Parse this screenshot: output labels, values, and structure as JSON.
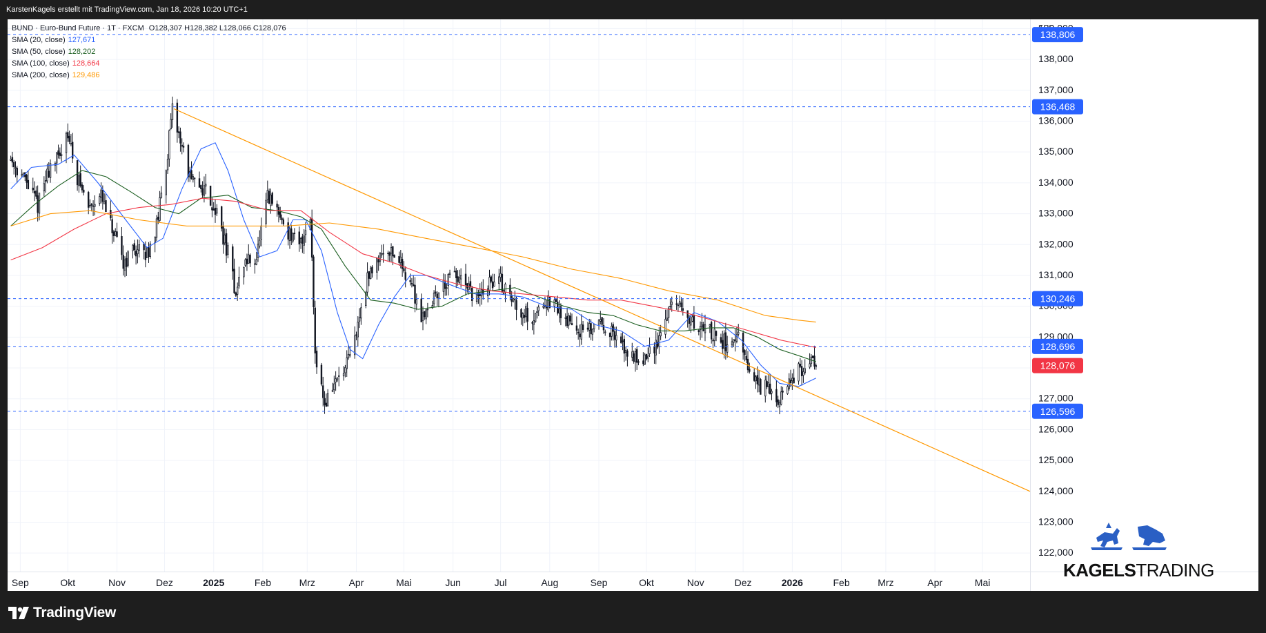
{
  "header": {
    "attribution": "KarstenKagels erstellt mit TradingView.com, Jan 18, 2026 10:20 UTC+1"
  },
  "legend": {
    "title_line": "BUND · Euro-Bund Future · 1T · FXCM",
    "ohlc": "O128,307  H128,382  L128,066  C128,076",
    "sma": [
      {
        "label": "SMA (20, close)",
        "value": "127,671",
        "color": "#2962ff"
      },
      {
        "label": "SMA (50, close)",
        "value": "128,202",
        "color": "#1b5e20"
      },
      {
        "label": "SMA (100, close)",
        "value": "128,664",
        "color": "#f23645"
      },
      {
        "label": "SMA (200, close)",
        "value": "129,486",
        "color": "#ff9800"
      }
    ]
  },
  "branding": {
    "tradingview": "TradingView",
    "kagels_bold": "KAGELS",
    "kagels_light": "TRADING"
  },
  "colors": {
    "up": "#089981",
    "down": "#f23645",
    "candle": "#131722",
    "trendline": "#ff9800",
    "hline": "#2962ff",
    "last_price": "#f23645",
    "label_bg": "#2962ff"
  },
  "chart_data": {
    "type": "candlestick",
    "symbol": "BUND",
    "currency": "EUR",
    "ylim": [
      121.4,
      139.3
    ],
    "y_ticks": [
      122,
      123,
      124,
      125,
      126,
      127,
      128,
      129,
      130,
      131,
      132,
      133,
      134,
      135,
      136,
      137,
      138,
      139
    ],
    "y_tick_labels": [
      "122,000",
      "123,000",
      "124,000",
      "125,000",
      "126,000",
      "127,000",
      "128,000",
      "129,000",
      "130,000",
      "131,000",
      "132,000",
      "133,000",
      "134,000",
      "135,000",
      "136,000",
      "137,000",
      "138,000",
      "139,000"
    ],
    "x_range": [
      "2024-08-24",
      "2026-05-31"
    ],
    "x_ticks": [
      {
        "date": "2024-09-01",
        "label": "Sep",
        "bold": false
      },
      {
        "date": "2024-10-01",
        "label": "Okt",
        "bold": false
      },
      {
        "date": "2024-11-01",
        "label": "Nov",
        "bold": false
      },
      {
        "date": "2024-12-01",
        "label": "Dez",
        "bold": false
      },
      {
        "date": "2025-01-01",
        "label": "2025",
        "bold": true
      },
      {
        "date": "2025-02-01",
        "label": "Feb",
        "bold": false
      },
      {
        "date": "2025-03-01",
        "label": "Mrz",
        "bold": false
      },
      {
        "date": "2025-04-01",
        "label": "Apr",
        "bold": false
      },
      {
        "date": "2025-05-01",
        "label": "Mai",
        "bold": false
      },
      {
        "date": "2025-06-01",
        "label": "Jun",
        "bold": false
      },
      {
        "date": "2025-07-01",
        "label": "Jul",
        "bold": false
      },
      {
        "date": "2025-08-01",
        "label": "Aug",
        "bold": false
      },
      {
        "date": "2025-09-01",
        "label": "Sep",
        "bold": false
      },
      {
        "date": "2025-10-01",
        "label": "Okt",
        "bold": false
      },
      {
        "date": "2025-11-01",
        "label": "Nov",
        "bold": false
      },
      {
        "date": "2025-12-01",
        "label": "Dez",
        "bold": false
      },
      {
        "date": "2026-01-01",
        "label": "2026",
        "bold": true
      },
      {
        "date": "2026-02-01",
        "label": "Feb",
        "bold": false
      },
      {
        "date": "2026-03-01",
        "label": "Mrz",
        "bold": false
      },
      {
        "date": "2026-04-01",
        "label": "Apr",
        "bold": false
      },
      {
        "date": "2026-05-01",
        "label": "Mai",
        "bold": false
      }
    ],
    "price_path": [
      [
        "2024-08-26",
        134.8
      ],
      [
        "2024-09-05",
        134.0
      ],
      [
        "2024-09-12",
        133.3
      ],
      [
        "2024-09-20",
        134.6
      ],
      [
        "2024-09-26",
        134.8
      ],
      [
        "2024-09-30",
        135.8
      ],
      [
        "2024-10-07",
        134.2
      ],
      [
        "2024-10-14",
        133.2
      ],
      [
        "2024-10-21",
        133.7
      ],
      [
        "2024-10-28",
        132.6
      ],
      [
        "2024-11-05",
        131.4
      ],
      [
        "2024-11-12",
        131.9
      ],
      [
        "2024-11-19",
        131.6
      ],
      [
        "2024-11-26",
        132.6
      ],
      [
        "2024-12-02",
        134.6
      ],
      [
        "2024-12-06",
        136.3
      ],
      [
        "2024-12-11",
        135.4
      ],
      [
        "2024-12-18",
        134.0
      ],
      [
        "2024-12-27",
        133.8
      ],
      [
        "2025-01-03",
        133.0
      ],
      [
        "2025-01-10",
        131.7
      ],
      [
        "2025-01-15",
        130.4
      ],
      [
        "2025-01-20",
        131.4
      ],
      [
        "2025-01-28",
        131.6
      ],
      [
        "2025-02-04",
        133.5
      ],
      [
        "2025-02-10",
        133.1
      ],
      [
        "2025-02-17",
        132.4
      ],
      [
        "2025-02-24",
        131.9
      ],
      [
        "2025-03-03",
        133.0
      ],
      [
        "2025-03-06",
        128.6
      ],
      [
        "2025-03-12",
        126.8
      ],
      [
        "2025-03-18",
        127.5
      ],
      [
        "2025-03-25",
        127.9
      ],
      [
        "2025-03-31",
        128.9
      ],
      [
        "2025-04-07",
        130.7
      ],
      [
        "2025-04-14",
        131.6
      ],
      [
        "2025-04-21",
        131.9
      ],
      [
        "2025-04-28",
        131.5
      ],
      [
        "2025-05-05",
        130.8
      ],
      [
        "2025-05-12",
        129.7
      ],
      [
        "2025-05-19",
        130.2
      ],
      [
        "2025-05-26",
        130.7
      ],
      [
        "2025-06-02",
        131.0
      ],
      [
        "2025-06-09",
        130.6
      ],
      [
        "2025-06-16",
        130.2
      ],
      [
        "2025-06-23",
        130.7
      ],
      [
        "2025-06-30",
        130.9
      ],
      [
        "2025-07-07",
        130.3
      ],
      [
        "2025-07-14",
        129.9
      ],
      [
        "2025-07-21",
        129.6
      ],
      [
        "2025-07-28",
        130.2
      ],
      [
        "2025-08-04",
        130.0
      ],
      [
        "2025-08-11",
        129.6
      ],
      [
        "2025-08-18",
        129.3
      ],
      [
        "2025-08-25",
        129.1
      ],
      [
        "2025-09-01",
        129.6
      ],
      [
        "2025-09-08",
        129.2
      ],
      [
        "2025-09-15",
        128.7
      ],
      [
        "2025-09-22",
        128.4
      ],
      [
        "2025-09-29",
        128.3
      ],
      [
        "2025-10-06",
        128.6
      ],
      [
        "2025-10-13",
        129.6
      ],
      [
        "2025-10-17",
        130.2
      ],
      [
        "2025-10-24",
        129.8
      ],
      [
        "2025-10-31",
        129.4
      ],
      [
        "2025-11-07",
        129.3
      ],
      [
        "2025-11-14",
        129.0
      ],
      [
        "2025-11-21",
        128.8
      ],
      [
        "2025-11-28",
        128.9
      ],
      [
        "2025-12-05",
        127.8
      ],
      [
        "2025-12-12",
        127.4
      ],
      [
        "2025-12-19",
        127.3
      ],
      [
        "2025-12-24",
        127.0
      ],
      [
        "2025-12-31",
        127.6
      ],
      [
        "2026-01-07",
        128.0
      ],
      [
        "2026-01-12",
        128.3
      ],
      [
        "2026-01-16",
        128.076
      ]
    ],
    "sma": [
      {
        "name": "SMA (20, close)",
        "color": "#2962ff",
        "points": [
          [
            "2024-08-26",
            133.8
          ],
          [
            "2024-09-08",
            134.5
          ],
          [
            "2024-09-25",
            134.6
          ],
          [
            "2024-10-05",
            134.9
          ],
          [
            "2024-10-20",
            134.0
          ],
          [
            "2024-11-05",
            132.9
          ],
          [
            "2024-11-20",
            131.9
          ],
          [
            "2024-11-30",
            132.2
          ],
          [
            "2024-12-12",
            133.8
          ],
          [
            "2024-12-24",
            135.1
          ],
          [
            "2025-01-02",
            135.3
          ],
          [
            "2025-01-10",
            134.4
          ],
          [
            "2025-01-20",
            132.8
          ],
          [
            "2025-01-30",
            131.6
          ],
          [
            "2025-02-10",
            131.8
          ],
          [
            "2025-02-20",
            132.8
          ],
          [
            "2025-02-28",
            132.8
          ],
          [
            "2025-03-10",
            131.8
          ],
          [
            "2025-03-20",
            129.8
          ],
          [
            "2025-03-28",
            128.6
          ],
          [
            "2025-04-05",
            128.3
          ],
          [
            "2025-04-15",
            129.4
          ],
          [
            "2025-04-25",
            130.3
          ],
          [
            "2025-05-05",
            131.0
          ],
          [
            "2025-05-15",
            131.0
          ],
          [
            "2025-05-30",
            130.7
          ],
          [
            "2025-06-15",
            130.4
          ],
          [
            "2025-06-30",
            130.4
          ],
          [
            "2025-07-15",
            130.3
          ],
          [
            "2025-07-30",
            130.0
          ],
          [
            "2025-08-15",
            129.9
          ],
          [
            "2025-08-30",
            129.4
          ],
          [
            "2025-09-15",
            129.2
          ],
          [
            "2025-09-30",
            128.7
          ],
          [
            "2025-10-15",
            128.9
          ],
          [
            "2025-10-31",
            129.8
          ],
          [
            "2025-11-15",
            129.5
          ],
          [
            "2025-11-30",
            128.9
          ],
          [
            "2025-12-12",
            128.1
          ],
          [
            "2025-12-24",
            127.5
          ],
          [
            "2026-01-05",
            127.4
          ],
          [
            "2026-01-16",
            127.671
          ]
        ]
      },
      {
        "name": "SMA (50, close)",
        "color": "#1b5e20",
        "points": [
          [
            "2024-08-26",
            132.6
          ],
          [
            "2024-09-10",
            133.3
          ],
          [
            "2024-09-25",
            133.9
          ],
          [
            "2024-10-10",
            134.4
          ],
          [
            "2024-10-25",
            134.2
          ],
          [
            "2024-11-10",
            133.7
          ],
          [
            "2024-11-25",
            133.2
          ],
          [
            "2024-12-10",
            133.0
          ],
          [
            "2024-12-24",
            133.5
          ],
          [
            "2025-01-10",
            133.6
          ],
          [
            "2025-01-25",
            133.2
          ],
          [
            "2025-02-10",
            133.1
          ],
          [
            "2025-02-25",
            132.9
          ],
          [
            "2025-03-10",
            132.5
          ],
          [
            "2025-03-25",
            131.3
          ],
          [
            "2025-04-10",
            130.2
          ],
          [
            "2025-04-25",
            130.1
          ],
          [
            "2025-05-10",
            129.9
          ],
          [
            "2025-05-25",
            130.0
          ],
          [
            "2025-06-10",
            130.4
          ],
          [
            "2025-06-25",
            130.5
          ],
          [
            "2025-07-10",
            130.6
          ],
          [
            "2025-07-25",
            130.3
          ],
          [
            "2025-08-10",
            130.0
          ],
          [
            "2025-08-25",
            129.8
          ],
          [
            "2025-09-10",
            129.7
          ],
          [
            "2025-09-25",
            129.4
          ],
          [
            "2025-10-10",
            129.2
          ],
          [
            "2025-10-25",
            129.2
          ],
          [
            "2025-11-10",
            129.3
          ],
          [
            "2025-11-25",
            129.3
          ],
          [
            "2025-12-10",
            129.0
          ],
          [
            "2025-12-24",
            128.6
          ],
          [
            "2026-01-05",
            128.4
          ],
          [
            "2026-01-16",
            128.202
          ]
        ]
      },
      {
        "name": "SMA (100, close)",
        "color": "#f23645",
        "points": [
          [
            "2024-08-26",
            131.5
          ],
          [
            "2024-09-15",
            131.9
          ],
          [
            "2024-10-05",
            132.5
          ],
          [
            "2024-10-25",
            133.0
          ],
          [
            "2024-11-15",
            133.2
          ],
          [
            "2024-12-05",
            133.3
          ],
          [
            "2024-12-25",
            133.5
          ],
          [
            "2025-01-15",
            133.4
          ],
          [
            "2025-02-05",
            133.1
          ],
          [
            "2025-02-25",
            133.1
          ],
          [
            "2025-03-15",
            132.4
          ],
          [
            "2025-04-05",
            131.7
          ],
          [
            "2025-04-25",
            131.4
          ],
          [
            "2025-05-15",
            131.0
          ],
          [
            "2025-06-05",
            130.7
          ],
          [
            "2025-06-25",
            130.5
          ],
          [
            "2025-07-15",
            130.4
          ],
          [
            "2025-08-05",
            130.3
          ],
          [
            "2025-08-25",
            130.2
          ],
          [
            "2025-09-15",
            130.2
          ],
          [
            "2025-10-05",
            130.0
          ],
          [
            "2025-10-25",
            129.8
          ],
          [
            "2025-11-15",
            129.5
          ],
          [
            "2025-12-05",
            129.2
          ],
          [
            "2025-12-25",
            128.9
          ],
          [
            "2026-01-16",
            128.664
          ]
        ]
      },
      {
        "name": "SMA (200, close)",
        "color": "#ff9800",
        "points": [
          [
            "2024-08-26",
            132.6
          ],
          [
            "2024-09-20",
            133.0
          ],
          [
            "2024-10-15",
            133.1
          ],
          [
            "2024-11-15",
            132.8
          ],
          [
            "2024-12-15",
            132.6
          ],
          [
            "2025-01-15",
            132.6
          ],
          [
            "2025-02-15",
            132.6
          ],
          [
            "2025-03-15",
            132.7
          ],
          [
            "2025-04-15",
            132.5
          ],
          [
            "2025-05-15",
            132.2
          ],
          [
            "2025-06-15",
            131.9
          ],
          [
            "2025-07-15",
            131.6
          ],
          [
            "2025-08-15",
            131.2
          ],
          [
            "2025-09-15",
            130.9
          ],
          [
            "2025-10-15",
            130.5
          ],
          [
            "2025-11-15",
            130.2
          ],
          [
            "2025-12-15",
            129.7
          ],
          [
            "2026-01-05",
            129.55
          ],
          [
            "2026-01-16",
            129.486
          ]
        ]
      }
    ],
    "trendline": {
      "from": [
        "2024-12-07",
        136.4
      ],
      "to": [
        "2026-05-31",
        124.0
      ]
    },
    "horizontal_lines": [
      {
        "value": 138.806,
        "label": "138,806"
      },
      {
        "value": 136.468,
        "label": "136,468"
      },
      {
        "value": 130.246,
        "label": "130,246"
      },
      {
        "value": 128.696,
        "label": "128,696"
      },
      {
        "value": 126.596,
        "label": "126,596"
      }
    ],
    "last_price": {
      "value": 128.076,
      "label": "128,076"
    }
  }
}
